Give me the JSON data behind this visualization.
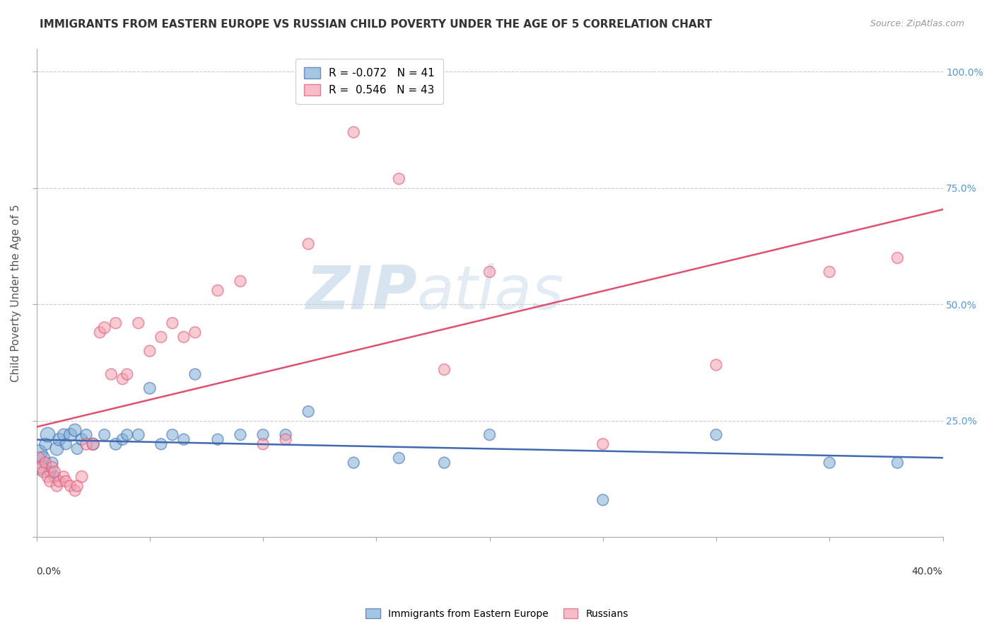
{
  "title": "IMMIGRANTS FROM EASTERN EUROPE VS RUSSIAN CHILD POVERTY UNDER THE AGE OF 5 CORRELATION CHART",
  "source": "Source: ZipAtlas.com",
  "ylabel": "Child Poverty Under the Age of 5",
  "legend_blue_label": "Immigrants from Eastern Europe",
  "legend_pink_label": "Russians",
  "R_blue": -0.072,
  "N_blue": 41,
  "R_pink": 0.546,
  "N_pink": 43,
  "blue_color": "#7EB0D5",
  "pink_color": "#F4A0B0",
  "blue_line_color": "#4169B0",
  "pink_line_color": "#E05070",
  "watermark_zip": "ZIP",
  "watermark_atlas": "atlas",
  "blue_x": [
    0.001,
    0.002,
    0.003,
    0.004,
    0.005,
    0.006,
    0.007,
    0.008,
    0.009,
    0.01,
    0.012,
    0.013,
    0.015,
    0.017,
    0.018,
    0.02,
    0.022,
    0.025,
    0.03,
    0.035,
    0.038,
    0.04,
    0.045,
    0.05,
    0.055,
    0.06,
    0.065,
    0.07,
    0.08,
    0.09,
    0.1,
    0.11,
    0.12,
    0.14,
    0.16,
    0.18,
    0.2,
    0.25,
    0.3,
    0.35,
    0.38
  ],
  "blue_y": [
    0.18,
    0.15,
    0.17,
    0.2,
    0.22,
    0.14,
    0.16,
    0.13,
    0.19,
    0.21,
    0.22,
    0.2,
    0.22,
    0.23,
    0.19,
    0.21,
    0.22,
    0.2,
    0.22,
    0.2,
    0.21,
    0.22,
    0.22,
    0.32,
    0.2,
    0.22,
    0.21,
    0.35,
    0.21,
    0.22,
    0.22,
    0.22,
    0.27,
    0.16,
    0.17,
    0.16,
    0.22,
    0.08,
    0.22,
    0.16,
    0.16
  ],
  "blue_size": [
    300,
    250,
    180,
    150,
    220,
    150,
    130,
    140,
    180,
    160,
    150,
    130,
    170,
    160,
    130,
    140,
    130,
    150,
    130,
    140,
    130,
    130,
    140,
    140,
    130,
    130,
    130,
    130,
    130,
    130,
    130,
    130,
    130,
    130,
    130,
    130,
    130,
    130,
    130,
    130,
    130
  ],
  "pink_x": [
    0.001,
    0.002,
    0.003,
    0.004,
    0.005,
    0.006,
    0.007,
    0.008,
    0.009,
    0.01,
    0.012,
    0.013,
    0.015,
    0.017,
    0.018,
    0.02,
    0.022,
    0.025,
    0.028,
    0.03,
    0.033,
    0.035,
    0.038,
    0.04,
    0.045,
    0.05,
    0.055,
    0.06,
    0.065,
    0.07,
    0.08,
    0.09,
    0.1,
    0.11,
    0.12,
    0.14,
    0.16,
    0.18,
    0.2,
    0.25,
    0.3,
    0.35,
    0.38
  ],
  "pink_y": [
    0.17,
    0.15,
    0.14,
    0.16,
    0.13,
    0.12,
    0.15,
    0.14,
    0.11,
    0.12,
    0.13,
    0.12,
    0.11,
    0.1,
    0.11,
    0.13,
    0.2,
    0.2,
    0.44,
    0.45,
    0.35,
    0.46,
    0.34,
    0.35,
    0.46,
    0.4,
    0.43,
    0.46,
    0.43,
    0.44,
    0.53,
    0.55,
    0.2,
    0.21,
    0.63,
    0.87,
    0.77,
    0.36,
    0.57,
    0.2,
    0.37,
    0.57,
    0.6
  ],
  "pink_size": [
    150,
    140,
    130,
    130,
    140,
    130,
    130,
    140,
    130,
    130,
    130,
    130,
    130,
    130,
    130,
    140,
    140,
    140,
    130,
    140,
    130,
    130,
    130,
    130,
    130,
    130,
    130,
    130,
    130,
    130,
    130,
    130,
    130,
    130,
    130,
    130,
    130,
    130,
    130,
    130,
    130,
    130,
    130
  ],
  "xmin": 0.0,
  "xmax": 0.4,
  "ymin": 0.0,
  "ymax": 1.05
}
